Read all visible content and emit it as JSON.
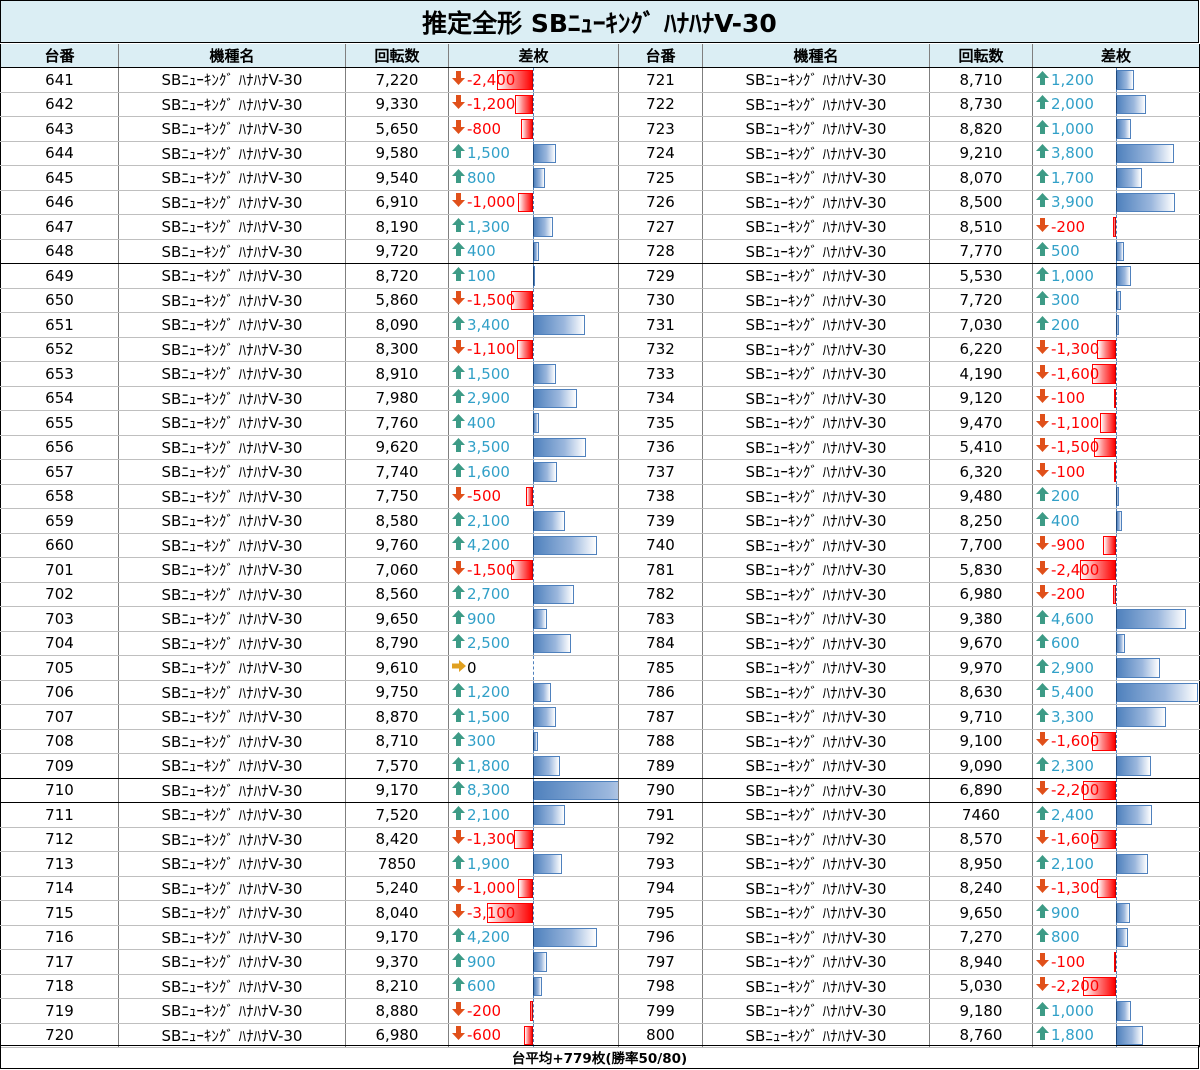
{
  "title": "推定全形 SBﾆｭｰｷﾝｸﾞ ﾊﾅﾊﾅV-30",
  "headers": [
    "台番",
    "機種名",
    "回転数",
    "差枚",
    "台番",
    "機種名",
    "回転数",
    "差枚"
  ],
  "colors": {
    "header_bg": "#dbeef4",
    "positive": "#31a0c8",
    "negative": "#ff0000",
    "bar_positive": "#4f81bd",
    "bar_negative": "#ff0000",
    "arrow_up": "#3d9b86",
    "arrow_down": "#e0501a",
    "arrow_flat": "#e0a020"
  },
  "icons": {
    "up": "up-arrow-icon",
    "down": "down-arrow-icon",
    "flat": "right-arrow-icon"
  },
  "rows": [
    {
      "left": {
        "no": "641",
        "model": "SBﾆｭｰｷﾝｸﾞ ﾊﾅﾊﾅV-30",
        "spins": "7,220",
        "diff": "-2,400",
        "v": -2400
      },
      "right": {
        "no": "721",
        "model": "SBﾆｭｰｷﾝｸﾞ ﾊﾅﾊﾅV-30",
        "spins": "8,710",
        "diff": "1,200",
        "v": 1200
      }
    },
    {
      "left": {
        "no": "642",
        "model": "SBﾆｭｰｷﾝｸﾞ ﾊﾅﾊﾅV-30",
        "spins": "9,330",
        "diff": "-1,200",
        "v": -1200
      },
      "right": {
        "no": "722",
        "model": "SBﾆｭｰｷﾝｸﾞ ﾊﾅﾊﾅV-30",
        "spins": "8,730",
        "diff": "2,000",
        "v": 2000
      }
    },
    {
      "left": {
        "no": "643",
        "model": "SBﾆｭｰｷﾝｸﾞ ﾊﾅﾊﾅV-30",
        "spins": "5,650",
        "diff": "-800",
        "v": -800
      },
      "right": {
        "no": "723",
        "model": "SBﾆｭｰｷﾝｸﾞ ﾊﾅﾊﾅV-30",
        "spins": "8,820",
        "diff": "1,000",
        "v": 1000
      }
    },
    {
      "left": {
        "no": "644",
        "model": "SBﾆｭｰｷﾝｸﾞ ﾊﾅﾊﾅV-30",
        "spins": "9,580",
        "diff": "1,500",
        "v": 1500
      },
      "right": {
        "no": "724",
        "model": "SBﾆｭｰｷﾝｸﾞ ﾊﾅﾊﾅV-30",
        "spins": "9,210",
        "diff": "3,800",
        "v": 3800
      }
    },
    {
      "left": {
        "no": "645",
        "model": "SBﾆｭｰｷﾝｸﾞ ﾊﾅﾊﾅV-30",
        "spins": "9,540",
        "diff": "800",
        "v": 800
      },
      "right": {
        "no": "725",
        "model": "SBﾆｭｰｷﾝｸﾞ ﾊﾅﾊﾅV-30",
        "spins": "8,070",
        "diff": "1,700",
        "v": 1700
      }
    },
    {
      "left": {
        "no": "646",
        "model": "SBﾆｭｰｷﾝｸﾞ ﾊﾅﾊﾅV-30",
        "spins": "6,910",
        "diff": "-1,000",
        "v": -1000
      },
      "right": {
        "no": "726",
        "model": "SBﾆｭｰｷﾝｸﾞ ﾊﾅﾊﾅV-30",
        "spins": "8,500",
        "diff": "3,900",
        "v": 3900
      }
    },
    {
      "left": {
        "no": "647",
        "model": "SBﾆｭｰｷﾝｸﾞ ﾊﾅﾊﾅV-30",
        "spins": "8,190",
        "diff": "1,300",
        "v": 1300
      },
      "right": {
        "no": "727",
        "model": "SBﾆｭｰｷﾝｸﾞ ﾊﾅﾊﾅV-30",
        "spins": "8,510",
        "diff": "-200",
        "v": -200
      }
    },
    {
      "left": {
        "no": "648",
        "model": "SBﾆｭｰｷﾝｸﾞ ﾊﾅﾊﾅV-30",
        "spins": "9,720",
        "diff": "400",
        "v": 400
      },
      "right": {
        "no": "728",
        "model": "SBﾆｭｰｷﾝｸﾞ ﾊﾅﾊﾅV-30",
        "spins": "7,770",
        "diff": "500",
        "v": 500
      },
      "group_end": true
    },
    {
      "left": {
        "no": "649",
        "model": "SBﾆｭｰｷﾝｸﾞ ﾊﾅﾊﾅV-30",
        "spins": "8,720",
        "diff": "100",
        "v": 100
      },
      "right": {
        "no": "729",
        "model": "SBﾆｭｰｷﾝｸﾞ ﾊﾅﾊﾅV-30",
        "spins": "5,530",
        "diff": "1,000",
        "v": 1000
      }
    },
    {
      "left": {
        "no": "650",
        "model": "SBﾆｭｰｷﾝｸﾞ ﾊﾅﾊﾅV-30",
        "spins": "5,860",
        "diff": "-1,500",
        "v": -1500
      },
      "right": {
        "no": "730",
        "model": "SBﾆｭｰｷﾝｸﾞ ﾊﾅﾊﾅV-30",
        "spins": "7,720",
        "diff": "300",
        "v": 300
      }
    },
    {
      "left": {
        "no": "651",
        "model": "SBﾆｭｰｷﾝｸﾞ ﾊﾅﾊﾅV-30",
        "spins": "8,090",
        "diff": "3,400",
        "v": 3400
      },
      "right": {
        "no": "731",
        "model": "SBﾆｭｰｷﾝｸﾞ ﾊﾅﾊﾅV-30",
        "spins": "7,030",
        "diff": "200",
        "v": 200
      }
    },
    {
      "left": {
        "no": "652",
        "model": "SBﾆｭｰｷﾝｸﾞ ﾊﾅﾊﾅV-30",
        "spins": "8,300",
        "diff": "-1,100",
        "v": -1100
      },
      "right": {
        "no": "732",
        "model": "SBﾆｭｰｷﾝｸﾞ ﾊﾅﾊﾅV-30",
        "spins": "6,220",
        "diff": "-1,300",
        "v": -1300
      }
    },
    {
      "left": {
        "no": "653",
        "model": "SBﾆｭｰｷﾝｸﾞ ﾊﾅﾊﾅV-30",
        "spins": "8,910",
        "diff": "1,500",
        "v": 1500
      },
      "right": {
        "no": "733",
        "model": "SBﾆｭｰｷﾝｸﾞ ﾊﾅﾊﾅV-30",
        "spins": "4,190",
        "diff": "-1,600",
        "v": -1600
      }
    },
    {
      "left": {
        "no": "654",
        "model": "SBﾆｭｰｷﾝｸﾞ ﾊﾅﾊﾅV-30",
        "spins": "7,980",
        "diff": "2,900",
        "v": 2900
      },
      "right": {
        "no": "734",
        "model": "SBﾆｭｰｷﾝｸﾞ ﾊﾅﾊﾅV-30",
        "spins": "9,120",
        "diff": "-100",
        "v": -100
      }
    },
    {
      "left": {
        "no": "655",
        "model": "SBﾆｭｰｷﾝｸﾞ ﾊﾅﾊﾅV-30",
        "spins": "7,760",
        "diff": "400",
        "v": 400
      },
      "right": {
        "no": "735",
        "model": "SBﾆｭｰｷﾝｸﾞ ﾊﾅﾊﾅV-30",
        "spins": "9,470",
        "diff": "-1,100",
        "v": -1100
      }
    },
    {
      "left": {
        "no": "656",
        "model": "SBﾆｭｰｷﾝｸﾞ ﾊﾅﾊﾅV-30",
        "spins": "9,620",
        "diff": "3,500",
        "v": 3500
      },
      "right": {
        "no": "736",
        "model": "SBﾆｭｰｷﾝｸﾞ ﾊﾅﾊﾅV-30",
        "spins": "5,410",
        "diff": "-1,500",
        "v": -1500
      }
    },
    {
      "left": {
        "no": "657",
        "model": "SBﾆｭｰｷﾝｸﾞ ﾊﾅﾊﾅV-30",
        "spins": "7,740",
        "diff": "1,600",
        "v": 1600
      },
      "right": {
        "no": "737",
        "model": "SBﾆｭｰｷﾝｸﾞ ﾊﾅﾊﾅV-30",
        "spins": "6,320",
        "diff": "-100",
        "v": -100
      }
    },
    {
      "left": {
        "no": "658",
        "model": "SBﾆｭｰｷﾝｸﾞ ﾊﾅﾊﾅV-30",
        "spins": "7,750",
        "diff": "-500",
        "v": -500
      },
      "right": {
        "no": "738",
        "model": "SBﾆｭｰｷﾝｸﾞ ﾊﾅﾊﾅV-30",
        "spins": "9,480",
        "diff": "200",
        "v": 200
      }
    },
    {
      "left": {
        "no": "659",
        "model": "SBﾆｭｰｷﾝｸﾞ ﾊﾅﾊﾅV-30",
        "spins": "8,580",
        "diff": "2,100",
        "v": 2100
      },
      "right": {
        "no": "739",
        "model": "SBﾆｭｰｷﾝｸﾞ ﾊﾅﾊﾅV-30",
        "spins": "8,250",
        "diff": "400",
        "v": 400
      }
    },
    {
      "left": {
        "no": "660",
        "model": "SBﾆｭｰｷﾝｸﾞ ﾊﾅﾊﾅV-30",
        "spins": "9,760",
        "diff": "4,200",
        "v": 4200
      },
      "right": {
        "no": "740",
        "model": "SBﾆｭｰｷﾝｸﾞ ﾊﾅﾊﾅV-30",
        "spins": "7,700",
        "diff": "-900",
        "v": -900
      }
    },
    {
      "left": {
        "no": "701",
        "model": "SBﾆｭｰｷﾝｸﾞ ﾊﾅﾊﾅV-30",
        "spins": "7,060",
        "diff": "-1,500",
        "v": -1500
      },
      "right": {
        "no": "781",
        "model": "SBﾆｭｰｷﾝｸﾞ ﾊﾅﾊﾅV-30",
        "spins": "5,830",
        "diff": "-2,400",
        "v": -2400
      }
    },
    {
      "left": {
        "no": "702",
        "model": "SBﾆｭｰｷﾝｸﾞ ﾊﾅﾊﾅV-30",
        "spins": "8,560",
        "diff": "2,700",
        "v": 2700
      },
      "right": {
        "no": "782",
        "model": "SBﾆｭｰｷﾝｸﾞ ﾊﾅﾊﾅV-30",
        "spins": "6,980",
        "diff": "-200",
        "v": -200
      }
    },
    {
      "left": {
        "no": "703",
        "model": "SBﾆｭｰｷﾝｸﾞ ﾊﾅﾊﾅV-30",
        "spins": "9,650",
        "diff": "900",
        "v": 900
      },
      "right": {
        "no": "783",
        "model": "SBﾆｭｰｷﾝｸﾞ ﾊﾅﾊﾅV-30",
        "spins": "9,380",
        "diff": "4,600",
        "v": 4600
      }
    },
    {
      "left": {
        "no": "704",
        "model": "SBﾆｭｰｷﾝｸﾞ ﾊﾅﾊﾅV-30",
        "spins": "8,790",
        "diff": "2,500",
        "v": 2500
      },
      "right": {
        "no": "784",
        "model": "SBﾆｭｰｷﾝｸﾞ ﾊﾅﾊﾅV-30",
        "spins": "9,670",
        "diff": "600",
        "v": 600
      }
    },
    {
      "left": {
        "no": "705",
        "model": "SBﾆｭｰｷﾝｸﾞ ﾊﾅﾊﾅV-30",
        "spins": "9,610",
        "diff": "0",
        "v": 0
      },
      "right": {
        "no": "785",
        "model": "SBﾆｭｰｷﾝｸﾞ ﾊﾅﾊﾅV-30",
        "spins": "9,970",
        "diff": "2,900",
        "v": 2900
      }
    },
    {
      "left": {
        "no": "706",
        "model": "SBﾆｭｰｷﾝｸﾞ ﾊﾅﾊﾅV-30",
        "spins": "9,750",
        "diff": "1,200",
        "v": 1200
      },
      "right": {
        "no": "786",
        "model": "SBﾆｭｰｷﾝｸﾞ ﾊﾅﾊﾅV-30",
        "spins": "8,630",
        "diff": "5,400",
        "v": 5400
      }
    },
    {
      "left": {
        "no": "707",
        "model": "SBﾆｭｰｷﾝｸﾞ ﾊﾅﾊﾅV-30",
        "spins": "8,870",
        "diff": "1,500",
        "v": 1500
      },
      "right": {
        "no": "787",
        "model": "SBﾆｭｰｷﾝｸﾞ ﾊﾅﾊﾅV-30",
        "spins": "9,710",
        "diff": "3,300",
        "v": 3300
      }
    },
    {
      "left": {
        "no": "708",
        "model": "SBﾆｭｰｷﾝｸﾞ ﾊﾅﾊﾅV-30",
        "spins": "8,710",
        "diff": "300",
        "v": 300
      },
      "right": {
        "no": "788",
        "model": "SBﾆｭｰｷﾝｸﾞ ﾊﾅﾊﾅV-30",
        "spins": "9,100",
        "diff": "-1,600",
        "v": -1600
      }
    },
    {
      "left": {
        "no": "709",
        "model": "SBﾆｭｰｷﾝｸﾞ ﾊﾅﾊﾅV-30",
        "spins": "7,570",
        "diff": "1,800",
        "v": 1800
      },
      "right": {
        "no": "789",
        "model": "SBﾆｭｰｷﾝｸﾞ ﾊﾅﾊﾅV-30",
        "spins": "9,090",
        "diff": "2,300",
        "v": 2300
      },
      "group_end": true
    },
    {
      "left": {
        "no": "710",
        "model": "SBﾆｭｰｷﾝｸﾞ ﾊﾅﾊﾅV-30",
        "spins": "9,170",
        "diff": "8,300",
        "v": 8300
      },
      "right": {
        "no": "790",
        "model": "SBﾆｭｰｷﾝｸﾞ ﾊﾅﾊﾅV-30",
        "spins": "6,890",
        "diff": "-2,200",
        "v": -2200
      },
      "group_end": true
    },
    {
      "left": {
        "no": "711",
        "model": "SBﾆｭｰｷﾝｸﾞ ﾊﾅﾊﾅV-30",
        "spins": "7,520",
        "diff": "2,100",
        "v": 2100
      },
      "right": {
        "no": "791",
        "model": "SBﾆｭｰｷﾝｸﾞ ﾊﾅﾊﾅV-30",
        "spins": "7460",
        "diff": "2,400",
        "v": 2400
      }
    },
    {
      "left": {
        "no": "712",
        "model": "SBﾆｭｰｷﾝｸﾞ ﾊﾅﾊﾅV-30",
        "spins": "8,420",
        "diff": "-1,300",
        "v": -1300
      },
      "right": {
        "no": "792",
        "model": "SBﾆｭｰｷﾝｸﾞ ﾊﾅﾊﾅV-30",
        "spins": "8,570",
        "diff": "-1,600",
        "v": -1600
      }
    },
    {
      "left": {
        "no": "713",
        "model": "SBﾆｭｰｷﾝｸﾞ ﾊﾅﾊﾅV-30",
        "spins": "7850",
        "diff": "1,900",
        "v": 1900
      },
      "right": {
        "no": "793",
        "model": "SBﾆｭｰｷﾝｸﾞ ﾊﾅﾊﾅV-30",
        "spins": "8,950",
        "diff": "2,100",
        "v": 2100
      }
    },
    {
      "left": {
        "no": "714",
        "model": "SBﾆｭｰｷﾝｸﾞ ﾊﾅﾊﾅV-30",
        "spins": "5,240",
        "diff": "-1,000",
        "v": -1000
      },
      "right": {
        "no": "794",
        "model": "SBﾆｭｰｷﾝｸﾞ ﾊﾅﾊﾅV-30",
        "spins": "8,240",
        "diff": "-1,300",
        "v": -1300
      }
    },
    {
      "left": {
        "no": "715",
        "model": "SBﾆｭｰｷﾝｸﾞ ﾊﾅﾊﾅV-30",
        "spins": "8,040",
        "diff": "-3,100",
        "v": -3100
      },
      "right": {
        "no": "795",
        "model": "SBﾆｭｰｷﾝｸﾞ ﾊﾅﾊﾅV-30",
        "spins": "9,650",
        "diff": "900",
        "v": 900
      }
    },
    {
      "left": {
        "no": "716",
        "model": "SBﾆｭｰｷﾝｸﾞ ﾊﾅﾊﾅV-30",
        "spins": "9,170",
        "diff": "4,200",
        "v": 4200
      },
      "right": {
        "no": "796",
        "model": "SBﾆｭｰｷﾝｸﾞ ﾊﾅﾊﾅV-30",
        "spins": "7,270",
        "diff": "800",
        "v": 800
      }
    },
    {
      "left": {
        "no": "717",
        "model": "SBﾆｭｰｷﾝｸﾞ ﾊﾅﾊﾅV-30",
        "spins": "9,370",
        "diff": "900",
        "v": 900
      },
      "right": {
        "no": "797",
        "model": "SBﾆｭｰｷﾝｸﾞ ﾊﾅﾊﾅV-30",
        "spins": "8,940",
        "diff": "-100",
        "v": -100
      }
    },
    {
      "left": {
        "no": "718",
        "model": "SBﾆｭｰｷﾝｸﾞ ﾊﾅﾊﾅV-30",
        "spins": "8,210",
        "diff": "600",
        "v": 600
      },
      "right": {
        "no": "798",
        "model": "SBﾆｭｰｷﾝｸﾞ ﾊﾅﾊﾅV-30",
        "spins": "5,030",
        "diff": "-2,200",
        "v": -2200
      }
    },
    {
      "left": {
        "no": "719",
        "model": "SBﾆｭｰｷﾝｸﾞ ﾊﾅﾊﾅV-30",
        "spins": "8,880",
        "diff": "-200",
        "v": -200
      },
      "right": {
        "no": "799",
        "model": "SBﾆｭｰｷﾝｸﾞ ﾊﾅﾊﾅV-30",
        "spins": "9,180",
        "diff": "1,000",
        "v": 1000
      }
    },
    {
      "left": {
        "no": "720",
        "model": "SBﾆｭｰｷﾝｸﾞ ﾊﾅﾊﾅV-30",
        "spins": "6,980",
        "diff": "-600",
        "v": -600
      },
      "right": {
        "no": "800",
        "model": "SBﾆｭｰｷﾝｸﾞ ﾊﾅﾊﾅV-30",
        "spins": "8,760",
        "diff": "1,800",
        "v": 1800
      }
    }
  ],
  "footer": "台平均+779枚(勝率50/80)"
}
